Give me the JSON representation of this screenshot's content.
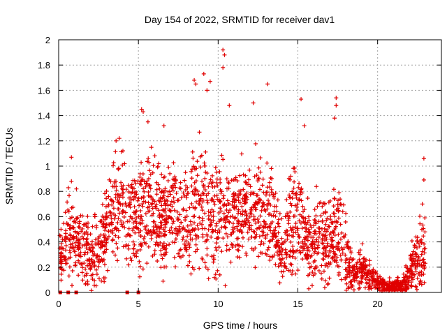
{
  "chart_data": {
    "type": "scatter",
    "title": "Day 154 of 2022, SRMTID for receiver dav1",
    "xlabel": "GPS time / hours",
    "ylabel": "SRMTID / TECUs",
    "xlim": [
      0,
      24
    ],
    "ylim": [
      0,
      2
    ],
    "x_ticks": [
      0,
      5,
      10,
      15,
      20
    ],
    "x_tick_labels": [
      "0",
      "5",
      "10",
      "15",
      "20"
    ],
    "y_ticks": [
      0,
      0.2,
      0.4,
      0.6,
      0.8,
      1,
      1.2,
      1.4,
      1.6,
      1.8,
      2
    ],
    "y_tick_labels": [
      "0",
      "0.2",
      "0.4",
      "0.6",
      "0.8",
      "1",
      "1.2",
      "1.4",
      "1.6",
      "1.8",
      "2"
    ],
    "grid": true,
    "marker": "+",
    "color": "#e00000",
    "series": [
      {
        "name": "SRMTID",
        "envelope": {
          "description": "approximate cloud of '+' samples: center and spread of SRMTID vs GPS hour",
          "x": [
            0.0,
            0.5,
            1.0,
            1.5,
            2.0,
            2.5,
            3.0,
            3.5,
            4.0,
            4.5,
            5.0,
            5.5,
            6.0,
            6.5,
            7.0,
            7.5,
            8.0,
            8.5,
            9.0,
            9.5,
            10.0,
            10.5,
            11.0,
            11.5,
            12.0,
            12.5,
            13.0,
            13.5,
            14.0,
            14.5,
            15.0,
            15.5,
            16.0,
            16.5,
            17.0,
            17.5,
            18.0,
            18.5,
            19.0,
            19.5,
            20.0,
            20.5,
            21.0,
            21.5,
            22.0,
            22.5,
            23.0
          ],
          "center": [
            0.25,
            0.45,
            0.42,
            0.35,
            0.3,
            0.32,
            0.5,
            0.65,
            0.75,
            0.55,
            0.6,
            0.75,
            0.6,
            0.55,
            0.65,
            0.6,
            0.45,
            0.65,
            0.7,
            0.55,
            0.6,
            0.55,
            0.6,
            0.65,
            0.7,
            0.65,
            0.6,
            0.55,
            0.3,
            0.5,
            0.55,
            0.45,
            0.4,
            0.45,
            0.4,
            0.5,
            0.3,
            0.15,
            0.2,
            0.12,
            0.08,
            0.05,
            0.05,
            0.05,
            0.15,
            0.25,
            0.3
          ],
          "spread": [
            0.15,
            0.3,
            0.3,
            0.25,
            0.25,
            0.25,
            0.3,
            0.35,
            0.35,
            0.3,
            0.4,
            0.4,
            0.35,
            0.35,
            0.35,
            0.35,
            0.35,
            0.45,
            0.45,
            0.4,
            0.5,
            0.4,
            0.35,
            0.35,
            0.35,
            0.35,
            0.35,
            0.3,
            0.2,
            0.35,
            0.35,
            0.3,
            0.3,
            0.3,
            0.3,
            0.35,
            0.25,
            0.12,
            0.15,
            0.1,
            0.07,
            0.05,
            0.05,
            0.05,
            0.15,
            0.25,
            0.3
          ]
        },
        "outliers": [
          {
            "x": 0.8,
            "y": 1.07
          },
          {
            "x": 0.8,
            "y": 0.88
          },
          {
            "x": 3.6,
            "y": 1.2
          },
          {
            "x": 3.8,
            "y": 1.22
          },
          {
            "x": 5.2,
            "y": 1.45
          },
          {
            "x": 5.3,
            "y": 1.43
          },
          {
            "x": 5.6,
            "y": 1.35
          },
          {
            "x": 6.6,
            "y": 1.32
          },
          {
            "x": 8.5,
            "y": 1.68
          },
          {
            "x": 8.6,
            "y": 1.65
          },
          {
            "x": 9.1,
            "y": 1.73
          },
          {
            "x": 9.3,
            "y": 1.6
          },
          {
            "x": 9.5,
            "y": 1.67
          },
          {
            "x": 10.3,
            "y": 1.92
          },
          {
            "x": 10.4,
            "y": 1.88
          },
          {
            "x": 10.3,
            "y": 1.78
          },
          {
            "x": 10.7,
            "y": 1.48
          },
          {
            "x": 12.2,
            "y": 1.5
          },
          {
            "x": 13.1,
            "y": 1.65
          },
          {
            "x": 15.2,
            "y": 1.53
          },
          {
            "x": 15.4,
            "y": 1.32
          },
          {
            "x": 17.4,
            "y": 1.54
          },
          {
            "x": 17.4,
            "y": 1.48
          },
          {
            "x": 17.3,
            "y": 1.38
          },
          {
            "x": 22.9,
            "y": 1.06
          },
          {
            "x": 22.9,
            "y": 0.89
          },
          {
            "x": 22.8,
            "y": 0.7
          }
        ],
        "zero_markers": [
          0.1,
          0.6,
          1.1,
          4.3,
          5.0
        ]
      }
    ]
  }
}
